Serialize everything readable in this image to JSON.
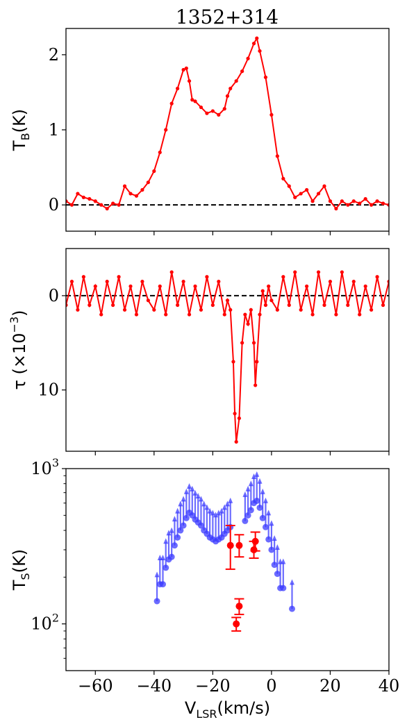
{
  "title": "1352+314",
  "chart_data": [
    {
      "type": "line",
      "panel": "top",
      "ylabel": {
        "main": "T",
        "sub": "B",
        "rest": "(K)"
      },
      "xlim": [
        -70,
        40
      ],
      "ylim": [
        -0.35,
        2.35
      ],
      "yticks": [
        0,
        1,
        2
      ],
      "ytick_labels": [
        "0",
        "1",
        "2"
      ],
      "reference_line_y": 0,
      "color": "#ff0000",
      "series": [
        {
          "x": [
            -70,
            -68,
            -66,
            -64,
            -62,
            -60,
            -58,
            -56,
            -54,
            -52,
            -50,
            -48,
            -46,
            -44,
            -42,
            -40,
            -38,
            -36,
            -34,
            -32,
            -30,
            -29,
            -28,
            -27,
            -26,
            -24,
            -22,
            -20,
            -18,
            -16,
            -15,
            -14,
            -12,
            -10,
            -8,
            -6,
            -5,
            -4,
            -2,
            0,
            2,
            4,
            6,
            8,
            10,
            12,
            14,
            16,
            18,
            20,
            22,
            24,
            26,
            28,
            30,
            32,
            34,
            36,
            38,
            40
          ],
          "y": [
            0.05,
            0.0,
            0.15,
            0.1,
            0.08,
            0.05,
            0.0,
            -0.05,
            0.02,
            0.0,
            0.25,
            0.15,
            0.12,
            0.2,
            0.3,
            0.45,
            0.7,
            1.0,
            1.35,
            1.55,
            1.8,
            1.82,
            1.65,
            1.4,
            1.38,
            1.3,
            1.22,
            1.25,
            1.2,
            1.28,
            1.45,
            1.55,
            1.65,
            1.78,
            1.95,
            2.15,
            2.22,
            2.05,
            1.7,
            1.2,
            0.65,
            0.35,
            0.25,
            0.1,
            0.15,
            0.2,
            0.05,
            0.15,
            0.25,
            0.05,
            -0.05,
            0.05,
            0.0,
            0.05,
            0.02,
            0.08,
            0.0,
            0.05,
            0.02,
            0.0
          ]
        }
      ]
    },
    {
      "type": "line",
      "panel": "middle",
      "ylabel": {
        "main": "τ (×10",
        "sup": "−3",
        "rest": ")"
      },
      "xlim": [
        -70,
        40
      ],
      "ylim": [
        16.5,
        -5.0
      ],
      "yticks": [
        0,
        10
      ],
      "ytick_labels": [
        "0",
        "10"
      ],
      "reference_line_y": 0,
      "color": "#ff0000",
      "series": [
        {
          "x": [
            -70,
            -68,
            -66,
            -64,
            -62,
            -60,
            -58,
            -56,
            -54,
            -52,
            -50,
            -48,
            -46,
            -44,
            -42,
            -40,
            -38,
            -36,
            -34,
            -32,
            -30,
            -28,
            -26,
            -24,
            -22,
            -20,
            -18,
            -16,
            -15,
            -14,
            -13,
            -12.5,
            -12,
            -11,
            -10,
            -9,
            -8,
            -7,
            -6,
            -5.5,
            -5,
            -4,
            -3,
            -2,
            -1,
            0,
            2,
            4,
            6,
            8,
            10,
            12,
            14,
            16,
            18,
            20,
            22,
            24,
            26,
            28,
            30,
            32,
            34,
            36,
            38,
            40
          ],
          "y": [
            1.0,
            -1.5,
            1.5,
            -2.0,
            1.0,
            -1.0,
            2.0,
            -1.5,
            1.0,
            -2.0,
            1.5,
            -1.0,
            2.0,
            -1.5,
            0.5,
            1.5,
            -1.0,
            2.0,
            -2.5,
            1.0,
            -1.5,
            2.0,
            -1.0,
            1.5,
            -2.0,
            1.0,
            -1.5,
            2.0,
            0.5,
            1.5,
            7.0,
            12.5,
            15.5,
            13.0,
            5.0,
            2.0,
            3.0,
            1.5,
            5.0,
            9.5,
            7.0,
            2.0,
            -0.5,
            1.0,
            -1.0,
            0.5,
            1.5,
            -2.0,
            1.0,
            -2.5,
            1.5,
            -1.0,
            2.0,
            -2.5,
            1.0,
            -1.5,
            2.0,
            -2.5,
            1.0,
            -1.5,
            2.0,
            -1.0,
            1.5,
            -2.0,
            1.0,
            -1.5
          ]
        }
      ]
    },
    {
      "type": "scatter",
      "panel": "bottom",
      "ylabel": {
        "main": "T",
        "sub": "S",
        "rest": "(K)"
      },
      "xlabel": {
        "main": "V",
        "sub": "LSR",
        "rest": "(km/s)"
      },
      "xlim": [
        -70,
        40
      ],
      "ylim": [
        50,
        1000
      ],
      "yscale": "log",
      "yticks": [
        100,
        1000
      ],
      "ytick_labels": [
        {
          "base": "10",
          "exp": "2"
        },
        {
          "base": "10",
          "exp": "3"
        }
      ],
      "xticks": [
        -60,
        -40,
        -20,
        0,
        20,
        40
      ],
      "xtick_labels": [
        "−60",
        "−40",
        "−20",
        "0",
        "20",
        "40"
      ],
      "series": [
        {
          "color": "#3a3aff",
          "kind": "lower-limit",
          "x": [
            -39,
            -38,
            -37,
            -36,
            -35,
            -34,
            -33,
            -32,
            -31,
            -30,
            -29,
            -28,
            -27,
            -26,
            -25,
            -24,
            -23,
            -22,
            -21,
            -20,
            -19,
            -18,
            -17,
            -16,
            -15,
            -14,
            -9,
            -8,
            -7,
            -6,
            -5,
            -4,
            -3,
            -2,
            -1,
            0,
            1,
            2,
            3,
            4,
            7
          ],
          "y": [
            140,
            180,
            180,
            230,
            260,
            270,
            320,
            360,
            400,
            430,
            480,
            520,
            500,
            470,
            450,
            430,
            400,
            380,
            360,
            350,
            340,
            350,
            360,
            380,
            400,
            420,
            460,
            500,
            540,
            600,
            620,
            560,
            480,
            420,
            350,
            300,
            240,
            210,
            170,
            170,
            125
          ]
        },
        {
          "color": "#ff0000",
          "kind": "detection",
          "x": [
            -14,
            -12,
            -11,
            -11,
            -6,
            -5.5
          ],
          "y": [
            320,
            100,
            130,
            320,
            300,
            340
          ],
          "err_low": [
            95,
            10,
            15,
            50,
            35,
            45
          ],
          "err_high": [
            110,
            10,
            15,
            55,
            40,
            50
          ]
        }
      ]
    }
  ]
}
